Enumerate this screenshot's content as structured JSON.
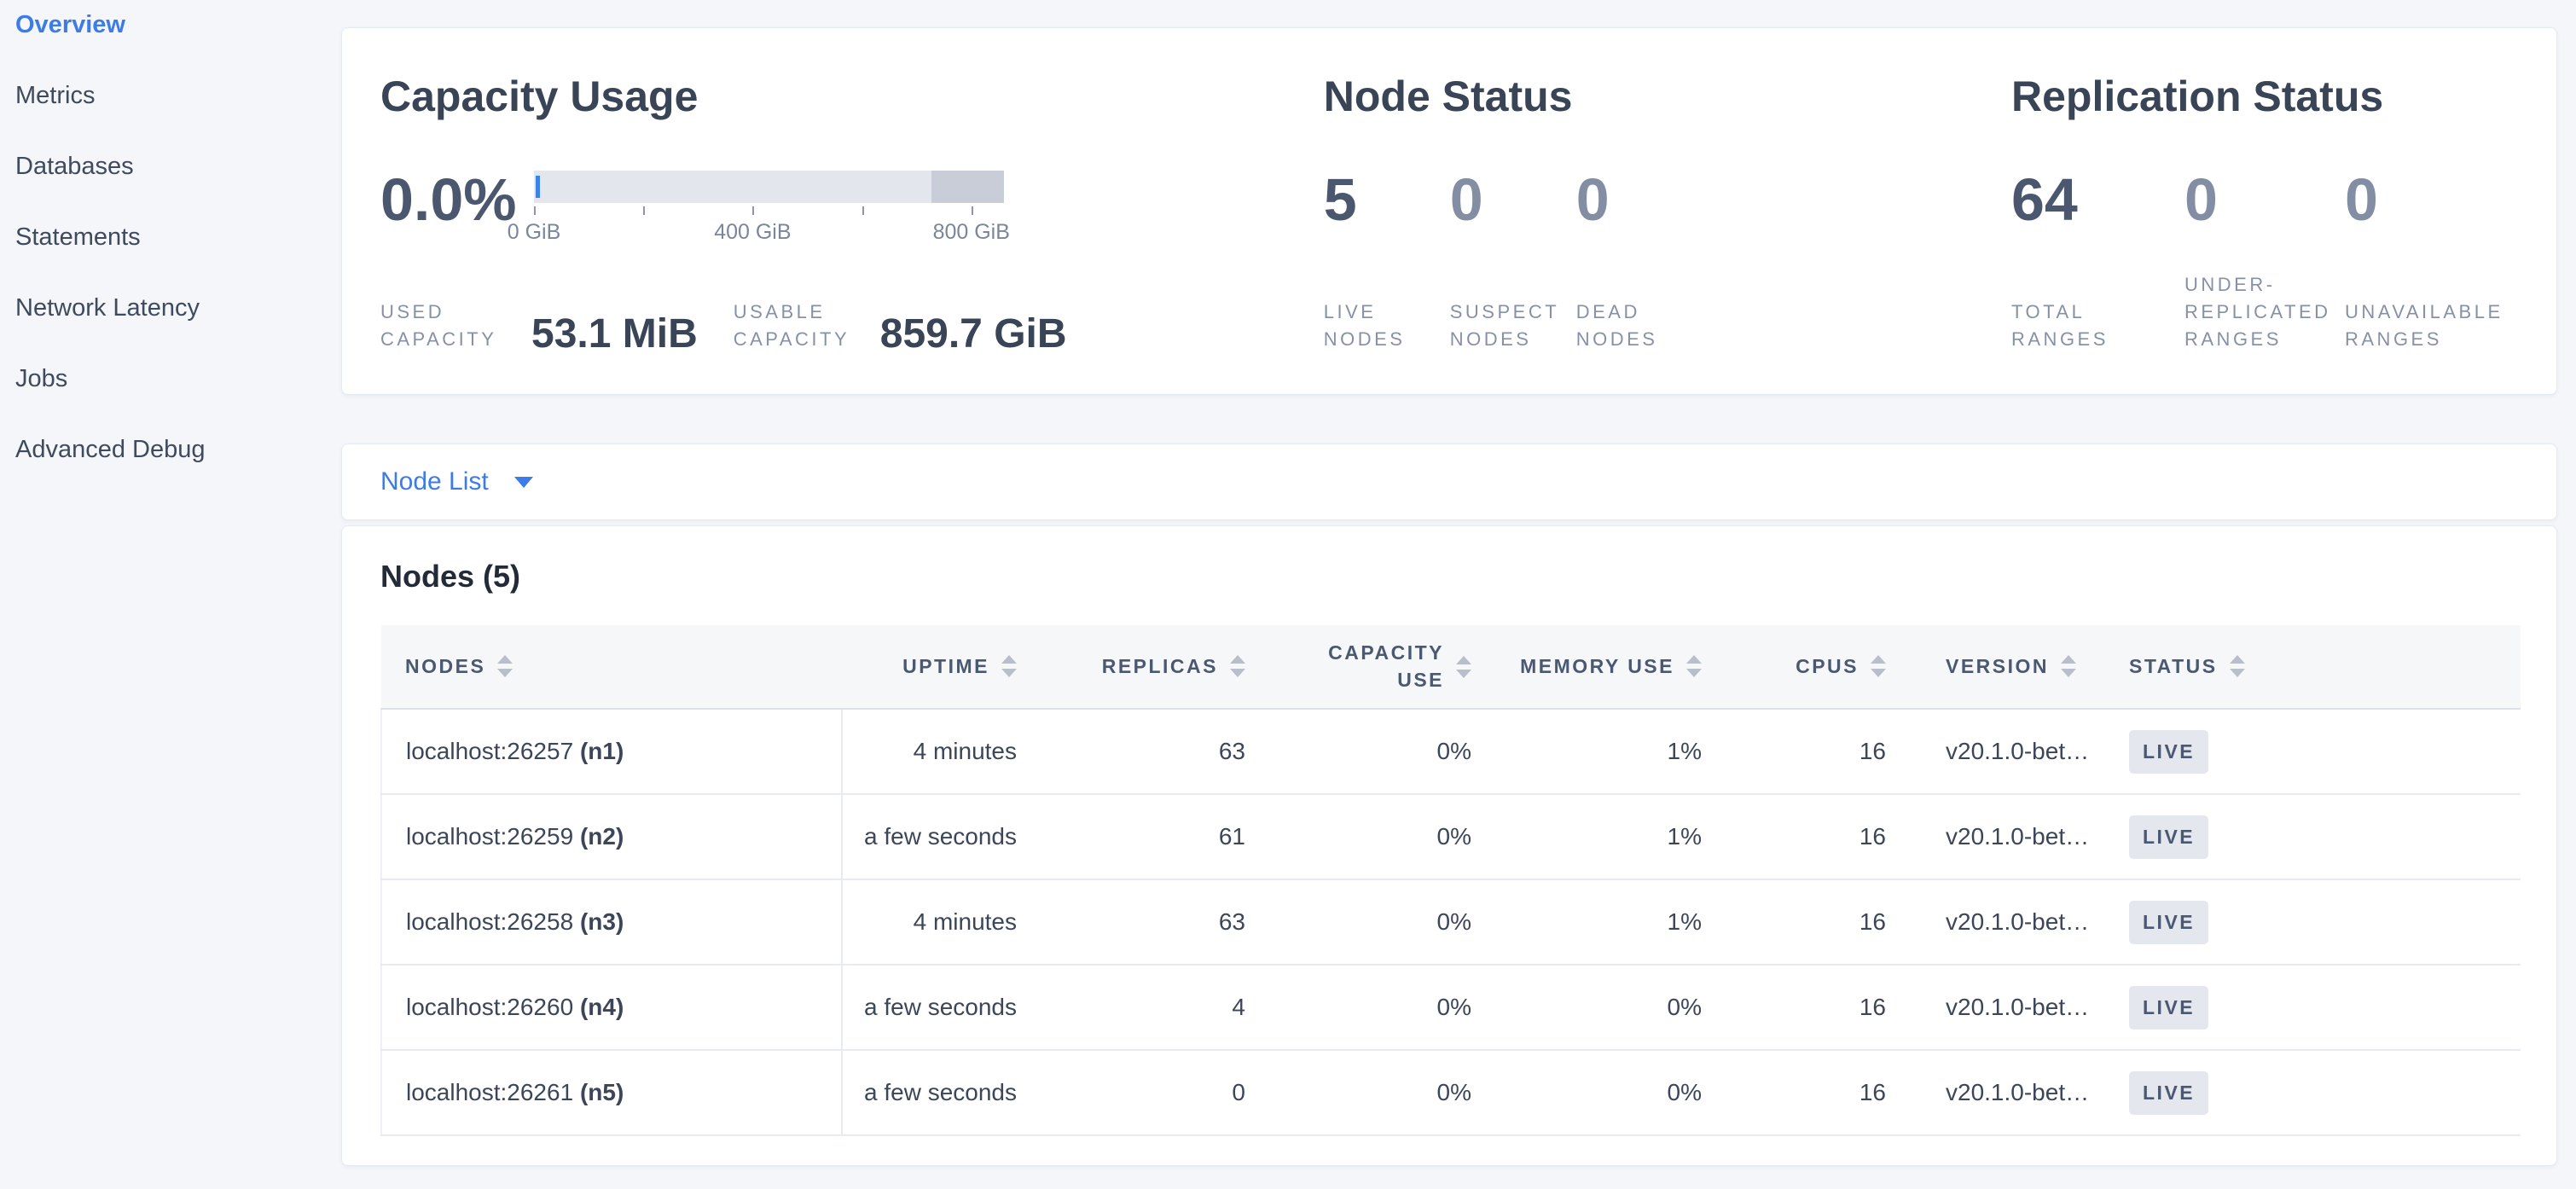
{
  "sidebar": {
    "items": [
      {
        "label": "Overview",
        "active": true
      },
      {
        "label": "Metrics",
        "active": false
      },
      {
        "label": "Databases",
        "active": false
      },
      {
        "label": "Statements",
        "active": false
      },
      {
        "label": "Network Latency",
        "active": false
      },
      {
        "label": "Jobs",
        "active": false
      },
      {
        "label": "Advanced Debug",
        "active": false
      }
    ]
  },
  "summary": {
    "capacity": {
      "title": "Capacity Usage",
      "percent": "0.0%",
      "bar": {
        "max_gib": 859.7,
        "dark_segment_from_gib": 727,
        "ticks": [
          {
            "gib": 0,
            "label": "0 GiB"
          },
          {
            "gib": 200,
            "label": ""
          },
          {
            "gib": 400,
            "label": "400 GiB"
          },
          {
            "gib": 600,
            "label": ""
          },
          {
            "gib": 800,
            "label": "800 GiB"
          }
        ]
      },
      "used_label": "USED CAPACITY",
      "used_value": "53.1 MiB",
      "usable_label": "USABLE CAPACITY",
      "usable_value": "859.7 GiB"
    },
    "node_status": {
      "title": "Node Status",
      "stats": [
        {
          "value": "5",
          "label": "LIVE NODES",
          "emphasis": true
        },
        {
          "value": "0",
          "label": "SUSPECT NODES",
          "emphasis": false
        },
        {
          "value": "0",
          "label": "DEAD NODES",
          "emphasis": false
        }
      ]
    },
    "replication_status": {
      "title": "Replication Status",
      "stats": [
        {
          "value": "64",
          "label": "TOTAL RANGES",
          "emphasis": true
        },
        {
          "value": "0",
          "label": "UNDER-REPLICATED RANGES",
          "emphasis": false
        },
        {
          "value": "0",
          "label": "UNAVAILABLE RANGES",
          "emphasis": false
        }
      ]
    }
  },
  "view_dropdown": {
    "label": "Node List"
  },
  "nodes_table": {
    "title": "Nodes (5)",
    "columns": [
      {
        "label": "NODES",
        "field": "node",
        "align": "left",
        "wrap": false
      },
      {
        "label": "UPTIME",
        "field": "uptime",
        "align": "right",
        "wrap": false
      },
      {
        "label": "REPLICAS",
        "field": "replicas",
        "align": "right",
        "wrap": false
      },
      {
        "label": "CAPACITY USE",
        "field": "capacity_use",
        "align": "right",
        "wrap": true
      },
      {
        "label": "MEMORY USE",
        "field": "memory_use",
        "align": "right",
        "wrap": false
      },
      {
        "label": "CPUS",
        "field": "cpus",
        "align": "right",
        "wrap": false
      },
      {
        "label": "VERSION",
        "field": "version",
        "align": "left",
        "wrap": false
      },
      {
        "label": "STATUS",
        "field": "status",
        "align": "left",
        "wrap": false
      }
    ],
    "rows": [
      {
        "node": "localhost:26257",
        "node_id": "(n1)",
        "uptime": "4 minutes",
        "replicas": "63",
        "capacity_use": "0%",
        "memory_use": "1%",
        "cpus": "16",
        "version": "v20.1.0-bet…",
        "status": "LIVE"
      },
      {
        "node": "localhost:26259",
        "node_id": "(n2)",
        "uptime": "a few seconds",
        "replicas": "61",
        "capacity_use": "0%",
        "memory_use": "1%",
        "cpus": "16",
        "version": "v20.1.0-bet…",
        "status": "LIVE"
      },
      {
        "node": "localhost:26258",
        "node_id": "(n3)",
        "uptime": "4 minutes",
        "replicas": "63",
        "capacity_use": "0%",
        "memory_use": "1%",
        "cpus": "16",
        "version": "v20.1.0-bet…",
        "status": "LIVE"
      },
      {
        "node": "localhost:26260",
        "node_id": "(n4)",
        "uptime": "a few seconds",
        "replicas": "4",
        "capacity_use": "0%",
        "memory_use": "0%",
        "cpus": "16",
        "version": "v20.1.0-bet…",
        "status": "LIVE"
      },
      {
        "node": "localhost:26261",
        "node_id": "(n5)",
        "uptime": "a few seconds",
        "replicas": "0",
        "capacity_use": "0%",
        "memory_use": "0%",
        "cpus": "16",
        "version": "v20.1.0-bet…",
        "status": "LIVE"
      }
    ]
  },
  "colors": {
    "accent_blue": "#3d7be8",
    "used_bar_blue": "#3b82e8",
    "page_bg": "#f4f6fa",
    "badge_bg": "#e4e7ee",
    "slate_dark": "#3a4457"
  }
}
